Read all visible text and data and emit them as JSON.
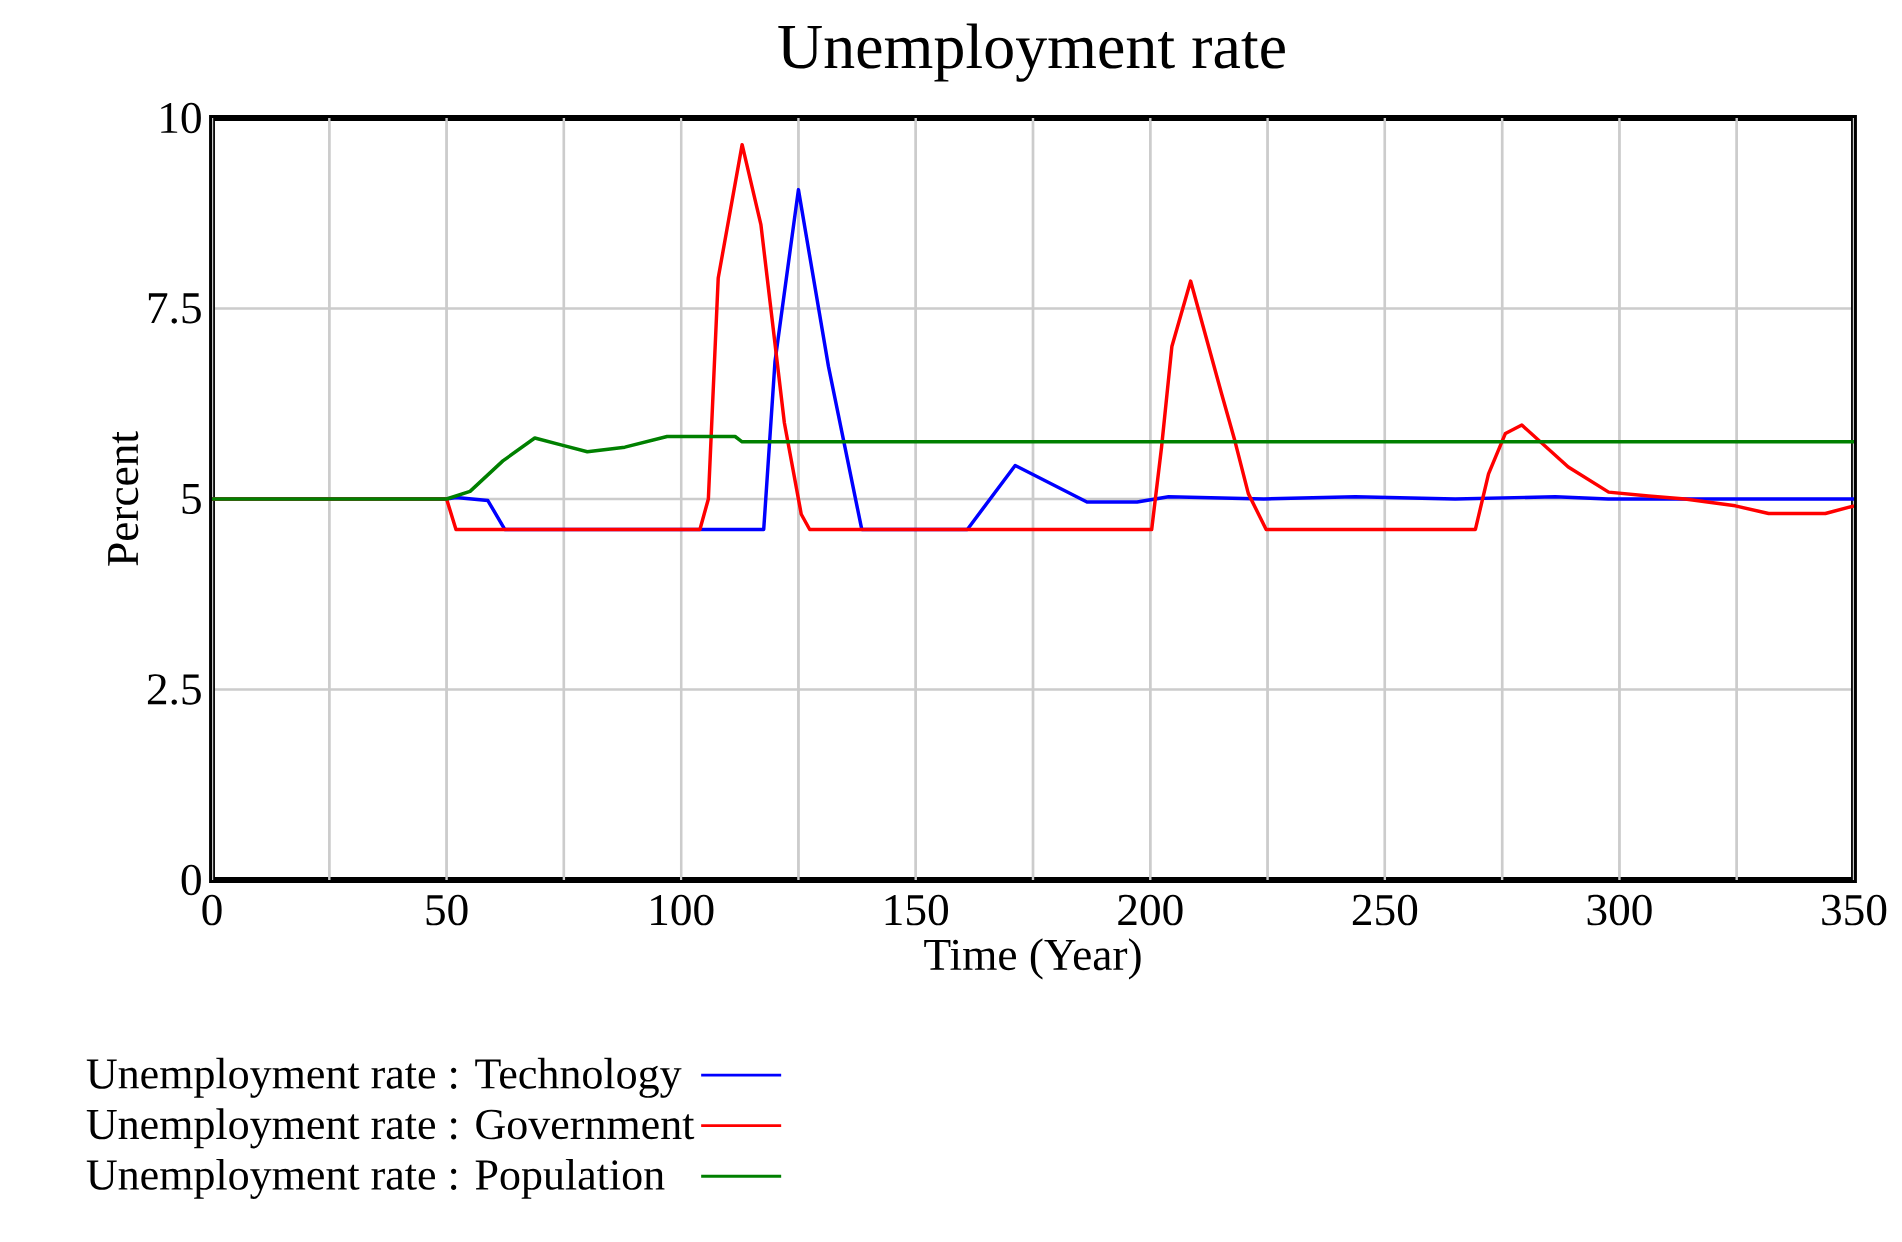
{
  "chart_data": {
    "type": "line",
    "title": "Unemployment rate",
    "xlabel": "Time (Year)",
    "ylabel": "Percent",
    "xlim": [
      0,
      350
    ],
    "ylim": [
      0,
      10
    ],
    "xticks": [
      0,
      {
        "value": 25,
        "label": null
      },
      50,
      {
        "value": 75,
        "label": null
      },
      100,
      {
        "value": 125,
        "label": null
      },
      150,
      {
        "value": 175,
        "label": null
      },
      200,
      {
        "value": 225,
        "label": null
      },
      250,
      {
        "value": 275,
        "label": null
      },
      300,
      {
        "value": 325,
        "label": null
      },
      350
    ],
    "yticks": [
      0,
      2.5,
      5,
      7.5,
      10
    ],
    "grid": true,
    "legend": "bottom",
    "series": [
      {
        "name": "Unemployment rate : Technology",
        "color": "#0000ff",
        "x": [
          0,
          50,
          52,
          58.8,
          62.4,
          117.6,
          120,
          125,
          131.4,
          138.5,
          161,
          171.2,
          186.5,
          197.2,
          203.9,
          224.2,
          243.7,
          265,
          286.3,
          297.6,
          350
        ],
        "values": [
          5,
          5,
          5.02,
          4.98,
          4.6,
          4.6,
          6.8,
          9.06,
          6.74,
          4.6,
          4.6,
          5.44,
          4.96,
          4.96,
          5.03,
          5.0,
          5.03,
          5.0,
          5.03,
          5.0,
          5.0
        ]
      },
      {
        "name": "Unemployment rate : Government",
        "color": "#ff0000",
        "x": [
          0,
          50,
          52,
          104,
          105.8,
          107.9,
          113,
          117,
          122,
          125.6,
          127.4,
          200.3,
          202.4,
          204.6,
          208.6,
          215.2,
          218,
          220.9,
          224.7,
          269.3,
          272.1,
          275.7,
          279.2,
          289.1,
          297.7,
          306.2,
          314,
          324.7,
          331.8,
          343.9,
          350
        ],
        "values": [
          5,
          5,
          4.6,
          4.6,
          5.0,
          7.9,
          9.65,
          8.6,
          6.0,
          4.8,
          4.6,
          4.6,
          5.68,
          7.0,
          7.86,
          6.38,
          5.77,
          5.07,
          4.6,
          4.6,
          5.33,
          5.86,
          5.97,
          5.42,
          5.09,
          5.04,
          5.0,
          4.91,
          4.81,
          4.81,
          4.91
        ]
      },
      {
        "name": "Unemployment rate : Population",
        "color": "#008000",
        "x": [
          0,
          50,
          55,
          62,
          68.8,
          75,
          80,
          88,
          97,
          111.5,
          113,
          350
        ],
        "values": [
          5,
          5,
          5.1,
          5.5,
          5.8,
          5.7,
          5.62,
          5.68,
          5.82,
          5.82,
          5.75,
          5.75
        ]
      }
    ]
  }
}
